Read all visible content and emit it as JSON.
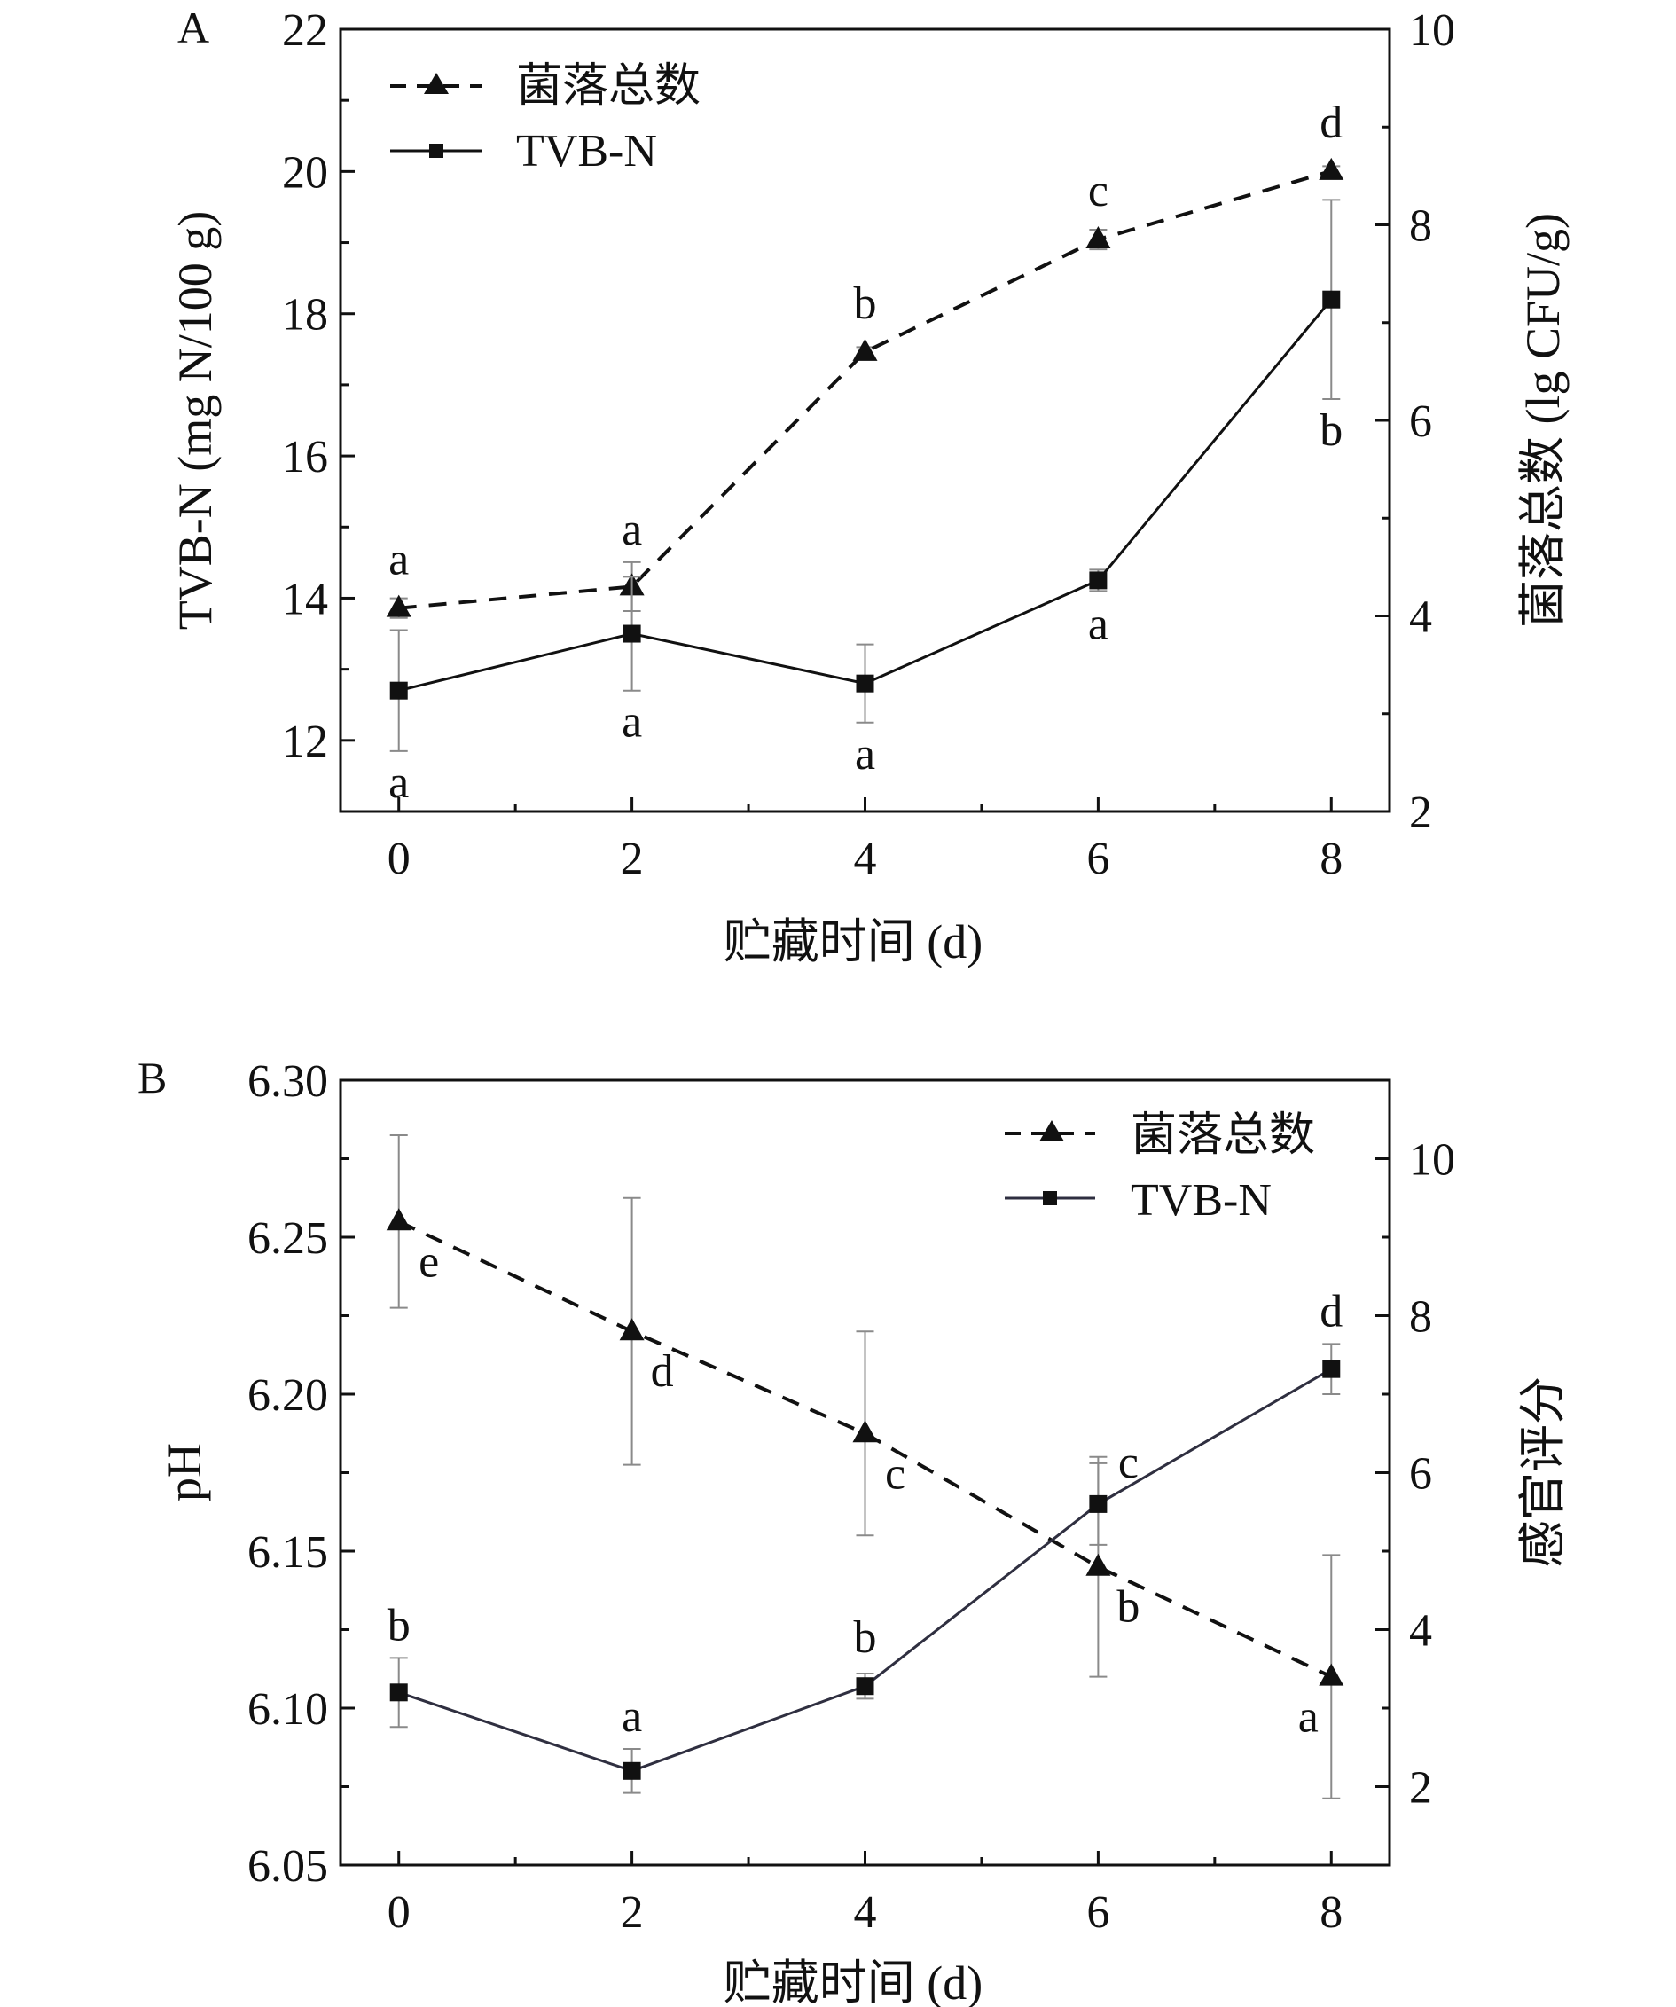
{
  "chart_data": [
    {
      "panel_label": "A",
      "type": "line",
      "x": [
        0,
        2,
        4,
        6,
        8
      ],
      "xlabel": "贮藏时间 (d)",
      "xlim": [
        -0.5,
        8.5
      ],
      "xticks": [
        0,
        2,
        4,
        6,
        8
      ],
      "ylabel": "TVB-N (mg N/100 g)",
      "ylim": [
        11,
        22
      ],
      "yticks": [
        12,
        14,
        16,
        18,
        20,
        22
      ],
      "y2label": "菌落总数 (lg CFU/g)",
      "y2lim": [
        2,
        10
      ],
      "y2ticks": [
        2,
        4,
        6,
        8,
        10
      ],
      "legend_position": "top-left",
      "series": [
        {
          "name": "菌落总数",
          "axis": "right",
          "style": "dashed",
          "marker": "triangle",
          "values": [
            4.08,
            4.3,
            6.7,
            7.85,
            8.55
          ],
          "errors": [
            0.1,
            0.25,
            0.05,
            0.1,
            0.05
          ],
          "labels": [
            "a",
            "a",
            "b",
            "c",
            "d"
          ],
          "label_side": [
            "above",
            "above",
            "above",
            "above",
            "above"
          ]
        },
        {
          "name": "TVB-N",
          "axis": "left",
          "style": "solid",
          "marker": "square",
          "values": [
            12.7,
            13.5,
            12.8,
            14.25,
            18.2
          ],
          "errors": [
            0.85,
            0.8,
            0.55,
            0.15,
            1.4
          ],
          "labels": [
            "a",
            "a",
            "a",
            "a",
            "b"
          ],
          "label_side": [
            "below",
            "below",
            "below",
            "below",
            "below"
          ]
        }
      ]
    },
    {
      "panel_label": "B",
      "type": "line",
      "x": [
        0,
        2,
        4,
        6,
        8
      ],
      "xlabel": "贮藏时间 (d)",
      "xlim": [
        -0.5,
        8.5
      ],
      "xticks": [
        0,
        2,
        4,
        6,
        8
      ],
      "ylabel": "pH",
      "ylim": [
        6.05,
        6.3
      ],
      "yticks": [
        6.05,
        6.1,
        6.15,
        6.2,
        6.25,
        6.3
      ],
      "y2label": "感官评分",
      "y2lim": [
        1,
        11
      ],
      "y2ticks": [
        2,
        4,
        6,
        8,
        10
      ],
      "legend_position": "top-right",
      "series": [
        {
          "name": "菌落总数",
          "axis": "right",
          "style": "dashed",
          "marker": "triangle",
          "values": [
            9.2,
            7.8,
            6.5,
            4.8,
            3.4
          ],
          "errors": [
            1.1,
            1.7,
            1.3,
            1.4,
            1.55
          ],
          "labels": [
            "e",
            "d",
            "c",
            "b",
            "a"
          ],
          "label_side": [
            "below-right",
            "below-right",
            "below-right",
            "below-right",
            "below-left"
          ]
        },
        {
          "name": "TVB-N",
          "axis": "left",
          "style": "solid",
          "marker": "square",
          "values": [
            6.105,
            6.08,
            6.107,
            6.165,
            6.208
          ],
          "errors": [
            0.011,
            0.007,
            0.004,
            0.013,
            0.008
          ],
          "labels": [
            "b",
            "a",
            "b",
            "c",
            "d"
          ],
          "label_side": [
            "above",
            "above",
            "above",
            "above-right",
            "above"
          ]
        }
      ]
    }
  ]
}
